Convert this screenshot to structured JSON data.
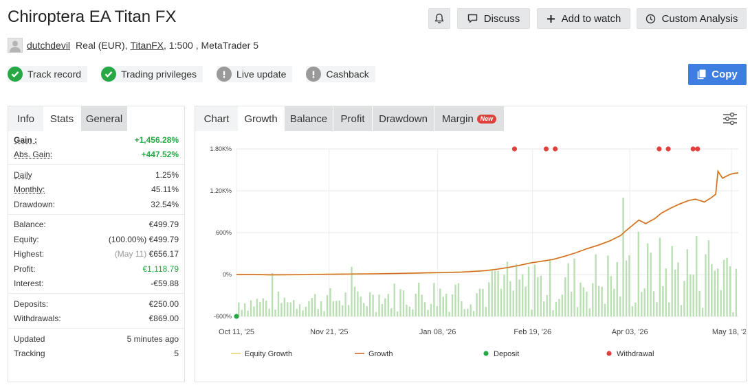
{
  "header": {
    "title": "Chiroptera EA Titan FX",
    "discuss_label": "Discuss",
    "add_watch_label": "Add to watch",
    "custom_analysis_label": "Custom Analysis"
  },
  "account": {
    "user": "dutchdevil",
    "type_text": "Real (EUR),",
    "broker": "TitanFX",
    "details": ", 1:500 , MetaTrader 5"
  },
  "badges": [
    {
      "label": "Track record",
      "status": "ok"
    },
    {
      "label": "Trading privileges",
      "status": "ok"
    },
    {
      "label": "Live update",
      "status": "warn"
    },
    {
      "label": "Cashback",
      "status": "warn"
    }
  ],
  "copy_label": "Copy",
  "left_tabs": [
    "Info",
    "Stats",
    "General"
  ],
  "stats": {
    "gain_label": "Gain :",
    "gain_value": "+1,456.28%",
    "abs_gain_label": "Abs. Gain:",
    "abs_gain_value": "+447.52%",
    "daily_label": "Daily",
    "daily_value": "1.25%",
    "monthly_label": "Monthly:",
    "monthly_value": "45.11%",
    "drawdown_label": "Drawdown:",
    "drawdown_value": "32.54%",
    "balance_label": "Balance:",
    "balance_value": "€499.79",
    "equity_label": "Equity:",
    "equity_pct": "(100.00%)",
    "equity_value": "€499.79",
    "highest_label": "Highest:",
    "highest_date": "(May 11)",
    "highest_value": "€656.17",
    "profit_label": "Profit:",
    "profit_value": "€1,118.79",
    "interest_label": "Interest:",
    "interest_value": "-€59.88",
    "deposits_label": "Deposits:",
    "deposits_value": "€250.00",
    "withdrawals_label": "Withdrawals:",
    "withdrawals_value": "€869.00",
    "updated_label": "Updated",
    "updated_value": "5 minutes ago",
    "tracking_label": "Tracking",
    "tracking_value": "5"
  },
  "chart_tabs": {
    "chart": "Chart",
    "growth": "Growth",
    "balance": "Balance",
    "profit": "Profit",
    "drawdown": "Drawdown",
    "margin": "Margin",
    "new_badge": "New"
  },
  "colors": {
    "growth_line": "#d2662e",
    "equity_line": "#e8d76a",
    "bars": "#b9dfb3",
    "deposit": "#27a844",
    "withdrawal": "#e0413d",
    "accent": "#3e7ee0"
  },
  "chart_data": {
    "type": "line",
    "y_ticks": [
      "1.80K%",
      "1.20K%",
      "600%",
      "0%",
      "-600%"
    ],
    "y_tick_values": [
      1800,
      1200,
      600,
      0,
      -600
    ],
    "ylim": [
      -600,
      1800
    ],
    "x_ticks": [
      "Oct 11, '25",
      "Nov 21, '25",
      "Jan 08, '26",
      "Feb 19, '26",
      "Apr 03, '26",
      "May 18, '26"
    ],
    "x_tick_days": [
      0,
      41,
      89,
      131,
      174,
      219
    ],
    "xlim_days": [
      0,
      222
    ],
    "legend": [
      "Equity Growth",
      "Growth",
      "Deposit",
      "Withdrawal"
    ],
    "growth": [
      [
        0,
        0
      ],
      [
        8,
        0
      ],
      [
        15,
        -5
      ],
      [
        25,
        -3
      ],
      [
        35,
        2
      ],
      [
        45,
        5
      ],
      [
        55,
        8
      ],
      [
        65,
        12
      ],
      [
        75,
        18
      ],
      [
        85,
        25
      ],
      [
        95,
        30
      ],
      [
        100,
        35
      ],
      [
        105,
        45
      ],
      [
        110,
        55
      ],
      [
        115,
        75
      ],
      [
        120,
        100
      ],
      [
        125,
        130
      ],
      [
        130,
        165
      ],
      [
        135,
        190
      ],
      [
        140,
        215
      ],
      [
        145,
        260
      ],
      [
        150,
        310
      ],
      [
        155,
        370
      ],
      [
        160,
        420
      ],
      [
        165,
        480
      ],
      [
        170,
        560
      ],
      [
        172,
        620
      ],
      [
        175,
        700
      ],
      [
        178,
        780
      ],
      [
        181,
        730
      ],
      [
        185,
        800
      ],
      [
        188,
        880
      ],
      [
        192,
        950
      ],
      [
        196,
        1010
      ],
      [
        200,
        1060
      ],
      [
        203,
        1080
      ],
      [
        207,
        1040
      ],
      [
        210,
        1100
      ],
      [
        212,
        1150
      ],
      [
        213,
        1480
      ],
      [
        215,
        1380
      ],
      [
        218,
        1430
      ],
      [
        220,
        1450
      ],
      [
        222,
        1456
      ]
    ],
    "deposits_days": [
      0
    ],
    "withdrawal_days": [
      123,
      137,
      141,
      187,
      191,
      202,
      204
    ]
  }
}
